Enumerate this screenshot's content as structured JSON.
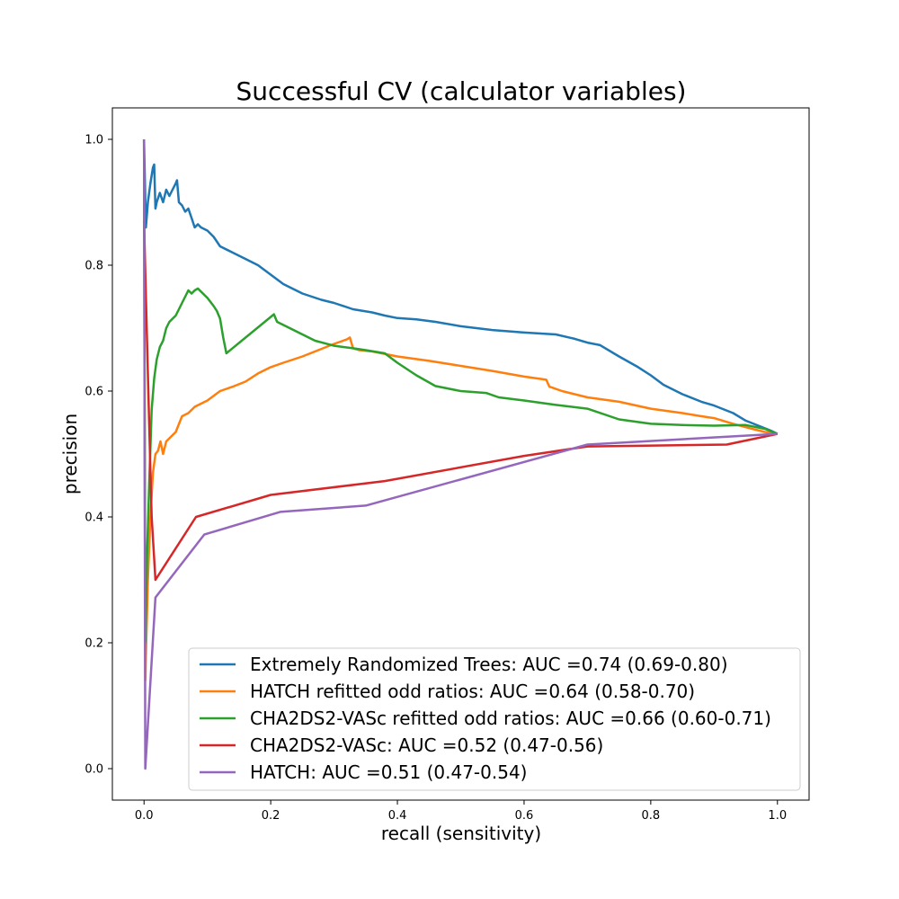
{
  "chart_data": {
    "type": "line",
    "title": "Successful CV (calculator variables)",
    "xlabel": "recall (sensitivity)",
    "ylabel": "precision",
    "xlim": [
      -0.05,
      1.05
    ],
    "ylim": [
      -0.05,
      1.05
    ],
    "x_ticks": [
      "0.0",
      "0.2",
      "0.4",
      "0.6",
      "0.8",
      "1.0"
    ],
    "y_ticks": [
      "0.0",
      "0.2",
      "0.4",
      "0.6",
      "0.8",
      "1.0"
    ],
    "grid": false,
    "legend_position": "lower-right",
    "series": [
      {
        "name": "Extremely Randomized Trees: AUC =0.74 (0.69-0.80)",
        "color": "#1f77b4",
        "points": [
          [
            0.0,
            1.0
          ],
          [
            0.003,
            0.86
          ],
          [
            0.006,
            0.9
          ],
          [
            0.01,
            0.93
          ],
          [
            0.014,
            0.955
          ],
          [
            0.016,
            0.96
          ],
          [
            0.018,
            0.89
          ],
          [
            0.02,
            0.9
          ],
          [
            0.025,
            0.915
          ],
          [
            0.03,
            0.9
          ],
          [
            0.035,
            0.92
          ],
          [
            0.04,
            0.91
          ],
          [
            0.045,
            0.92
          ],
          [
            0.05,
            0.93
          ],
          [
            0.052,
            0.935
          ],
          [
            0.055,
            0.9
          ],
          [
            0.06,
            0.895
          ],
          [
            0.065,
            0.885
          ],
          [
            0.07,
            0.89
          ],
          [
            0.075,
            0.875
          ],
          [
            0.08,
            0.86
          ],
          [
            0.085,
            0.865
          ],
          [
            0.09,
            0.86
          ],
          [
            0.1,
            0.855
          ],
          [
            0.11,
            0.845
          ],
          [
            0.12,
            0.83
          ],
          [
            0.14,
            0.82
          ],
          [
            0.16,
            0.81
          ],
          [
            0.18,
            0.8
          ],
          [
            0.2,
            0.785
          ],
          [
            0.22,
            0.77
          ],
          [
            0.25,
            0.755
          ],
          [
            0.28,
            0.745
          ],
          [
            0.3,
            0.74
          ],
          [
            0.33,
            0.73
          ],
          [
            0.36,
            0.725
          ],
          [
            0.38,
            0.72
          ],
          [
            0.4,
            0.716
          ],
          [
            0.43,
            0.714
          ],
          [
            0.46,
            0.71
          ],
          [
            0.5,
            0.703
          ],
          [
            0.55,
            0.697
          ],
          [
            0.6,
            0.693
          ],
          [
            0.65,
            0.69
          ],
          [
            0.68,
            0.683
          ],
          [
            0.7,
            0.677
          ],
          [
            0.72,
            0.673
          ],
          [
            0.75,
            0.655
          ],
          [
            0.78,
            0.638
          ],
          [
            0.8,
            0.625
          ],
          [
            0.82,
            0.61
          ],
          [
            0.85,
            0.595
          ],
          [
            0.88,
            0.583
          ],
          [
            0.9,
            0.577
          ],
          [
            0.93,
            0.565
          ],
          [
            0.95,
            0.553
          ],
          [
            0.97,
            0.545
          ],
          [
            0.99,
            0.537
          ],
          [
            1.0,
            0.532
          ]
        ]
      },
      {
        "name": "HATCH refitted odd ratios: AUC =0.64 (0.58-0.70)",
        "color": "#ff7f0e",
        "points": [
          [
            0.0,
            1.0
          ],
          [
            0.002,
            0.14
          ],
          [
            0.006,
            0.3
          ],
          [
            0.01,
            0.4
          ],
          [
            0.014,
            0.47
          ],
          [
            0.018,
            0.5
          ],
          [
            0.022,
            0.505
          ],
          [
            0.026,
            0.52
          ],
          [
            0.03,
            0.5
          ],
          [
            0.035,
            0.52
          ],
          [
            0.04,
            0.525
          ],
          [
            0.05,
            0.535
          ],
          [
            0.06,
            0.56
          ],
          [
            0.07,
            0.565
          ],
          [
            0.08,
            0.575
          ],
          [
            0.1,
            0.585
          ],
          [
            0.12,
            0.6
          ],
          [
            0.14,
            0.607
          ],
          [
            0.16,
            0.615
          ],
          [
            0.18,
            0.628
          ],
          [
            0.2,
            0.638
          ],
          [
            0.22,
            0.645
          ],
          [
            0.25,
            0.655
          ],
          [
            0.28,
            0.667
          ],
          [
            0.3,
            0.675
          ],
          [
            0.32,
            0.682
          ],
          [
            0.325,
            0.685
          ],
          [
            0.33,
            0.668
          ],
          [
            0.34,
            0.665
          ],
          [
            0.36,
            0.663
          ],
          [
            0.4,
            0.655
          ],
          [
            0.45,
            0.648
          ],
          [
            0.5,
            0.64
          ],
          [
            0.55,
            0.632
          ],
          [
            0.6,
            0.623
          ],
          [
            0.635,
            0.618
          ],
          [
            0.64,
            0.607
          ],
          [
            0.66,
            0.6
          ],
          [
            0.7,
            0.59
          ],
          [
            0.75,
            0.583
          ],
          [
            0.8,
            0.572
          ],
          [
            0.85,
            0.565
          ],
          [
            0.88,
            0.56
          ],
          [
            0.9,
            0.557
          ],
          [
            0.93,
            0.548
          ],
          [
            0.96,
            0.54
          ],
          [
            0.98,
            0.535
          ],
          [
            1.0,
            0.532
          ]
        ]
      },
      {
        "name": "CHA2DS2-VASc refitted odd ratios: AUC =0.66 (0.60-0.71)",
        "color": "#2ca02c",
        "points": [
          [
            0.0,
            1.0
          ],
          [
            0.002,
            0.2
          ],
          [
            0.005,
            0.35
          ],
          [
            0.008,
            0.45
          ],
          [
            0.012,
            0.57
          ],
          [
            0.016,
            0.62
          ],
          [
            0.02,
            0.65
          ],
          [
            0.025,
            0.67
          ],
          [
            0.03,
            0.68
          ],
          [
            0.035,
            0.7
          ],
          [
            0.04,
            0.71
          ],
          [
            0.05,
            0.72
          ],
          [
            0.06,
            0.74
          ],
          [
            0.065,
            0.75
          ],
          [
            0.07,
            0.76
          ],
          [
            0.075,
            0.755
          ],
          [
            0.08,
            0.76
          ],
          [
            0.085,
            0.763
          ],
          [
            0.09,
            0.758
          ],
          [
            0.1,
            0.748
          ],
          [
            0.11,
            0.735
          ],
          [
            0.115,
            0.727
          ],
          [
            0.12,
            0.715
          ],
          [
            0.125,
            0.685
          ],
          [
            0.13,
            0.66
          ],
          [
            0.205,
            0.722
          ],
          [
            0.21,
            0.71
          ],
          [
            0.23,
            0.7
          ],
          [
            0.25,
            0.69
          ],
          [
            0.27,
            0.68
          ],
          [
            0.3,
            0.672
          ],
          [
            0.33,
            0.668
          ],
          [
            0.35,
            0.665
          ],
          [
            0.38,
            0.66
          ],
          [
            0.4,
            0.645
          ],
          [
            0.43,
            0.625
          ],
          [
            0.46,
            0.608
          ],
          [
            0.5,
            0.6
          ],
          [
            0.54,
            0.597
          ],
          [
            0.56,
            0.59
          ],
          [
            0.6,
            0.585
          ],
          [
            0.65,
            0.578
          ],
          [
            0.7,
            0.572
          ],
          [
            0.75,
            0.555
          ],
          [
            0.8,
            0.548
          ],
          [
            0.85,
            0.546
          ],
          [
            0.9,
            0.545
          ],
          [
            0.95,
            0.546
          ],
          [
            0.98,
            0.54
          ],
          [
            1.0,
            0.532
          ]
        ]
      },
      {
        "name": "CHA2DS2-VASc: AUC =0.52 (0.47-0.56)",
        "color": "#d62728",
        "points": [
          [
            0.0,
            0.87
          ],
          [
            0.003,
            0.75
          ],
          [
            0.008,
            0.55
          ],
          [
            0.012,
            0.4
          ],
          [
            0.018,
            0.3
          ],
          [
            0.082,
            0.4
          ],
          [
            0.2,
            0.435
          ],
          [
            0.38,
            0.457
          ],
          [
            0.6,
            0.497
          ],
          [
            0.7,
            0.512
          ],
          [
            0.92,
            0.515
          ],
          [
            1.0,
            0.532
          ]
        ]
      },
      {
        "name": "HATCH: AUC =0.51 (0.47-0.54)",
        "color": "#9467bd",
        "points": [
          [
            0.0,
            1.0
          ],
          [
            0.002,
            0.0
          ],
          [
            0.018,
            0.272
          ],
          [
            0.095,
            0.372
          ],
          [
            0.215,
            0.408
          ],
          [
            0.35,
            0.418
          ],
          [
            0.7,
            0.515
          ],
          [
            1.0,
            0.532
          ]
        ]
      }
    ]
  }
}
